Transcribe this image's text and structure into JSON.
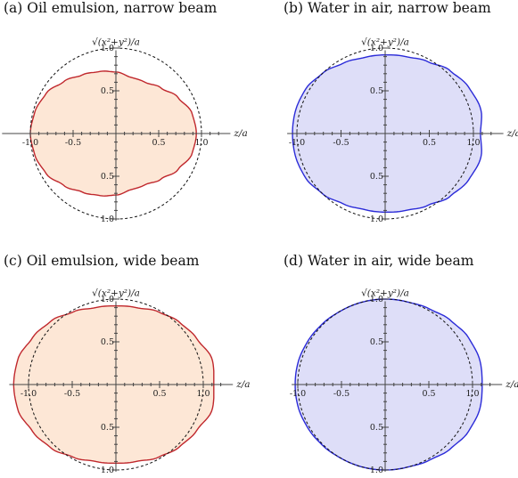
{
  "chart_data": [
    {
      "type": "shape",
      "title": "(a) Oil emulsion, narrow beam",
      "xlabel": "z/a",
      "ylabel": "√(x²+y²)/a",
      "x_ticks": [
        "-1.0",
        "-0.5",
        "0.5",
        "1.0"
      ],
      "y_ticks": [
        "1.0",
        "0.5",
        "0.5",
        "1.0"
      ],
      "reference_circle": "unit circle (dashed)",
      "fill_color": "#fde7d6",
      "stroke_color": "#c0282d",
      "shape_profile": [
        [
          0,
          0.94
        ],
        [
          15,
          0.92
        ],
        [
          30,
          0.84
        ],
        [
          45,
          0.75
        ],
        [
          60,
          0.69
        ],
        [
          75,
          0.68
        ],
        [
          90,
          0.72
        ],
        [
          105,
          0.75
        ],
        [
          120,
          0.79
        ],
        [
          135,
          0.86
        ],
        [
          150,
          0.94
        ],
        [
          165,
          0.98
        ],
        [
          180,
          1.0
        ]
      ]
    },
    {
      "type": "shape",
      "title": "(b) Water in air, narrow beam",
      "xlabel": "z/a",
      "ylabel": "√(x²+y²)/a",
      "x_ticks": [
        "-1.0",
        "-0.5",
        "0.5",
        "1.0"
      ],
      "y_ticks": [
        "1.0",
        "0.5",
        "0.5",
        "1.0"
      ],
      "reference_circle": "unit circle (dashed)",
      "fill_color": "#dedef8",
      "stroke_color": "#2b2bd8",
      "shape_profile": [
        [
          0,
          1.08
        ],
        [
          15,
          1.12
        ],
        [
          30,
          1.09
        ],
        [
          45,
          1.04
        ],
        [
          60,
          0.97
        ],
        [
          75,
          0.93
        ],
        [
          90,
          0.92
        ],
        [
          105,
          0.92
        ],
        [
          120,
          0.95
        ],
        [
          135,
          1.0
        ],
        [
          150,
          1.04
        ],
        [
          165,
          1.05
        ],
        [
          180,
          1.05
        ]
      ]
    },
    {
      "type": "shape",
      "title": "(c) Oil emulsion, wide beam",
      "xlabel": "z/a",
      "ylabel": "√(x²+y²)/a",
      "x_ticks": [
        "-1.0",
        "-0.5",
        "0.5",
        "1.0"
      ],
      "y_ticks": [
        "1.0",
        "0.5",
        "0.5",
        "1.0"
      ],
      "reference_circle": "unit circle (dashed)",
      "fill_color": "#fde7d6",
      "stroke_color": "#c0282d",
      "shape_profile": [
        [
          0,
          1.12
        ],
        [
          15,
          1.14
        ],
        [
          30,
          1.07
        ],
        [
          45,
          1.03
        ],
        [
          60,
          0.98
        ],
        [
          75,
          0.93
        ],
        [
          90,
          0.92
        ],
        [
          105,
          0.93
        ],
        [
          120,
          0.98
        ],
        [
          135,
          1.05
        ],
        [
          150,
          1.1
        ],
        [
          165,
          1.16
        ],
        [
          180,
          1.17
        ]
      ]
    },
    {
      "type": "shape",
      "title": "(d) Water in air, wide beam",
      "xlabel": "z/a",
      "ylabel": "√(x²+y²)/a",
      "x_ticks": [
        "-1.0",
        "-0.5",
        "0.5",
        "1.0"
      ],
      "y_ticks": [
        "1.0",
        "0.5",
        "0.5",
        "1.0"
      ],
      "reference_circle": "unit circle (dashed)",
      "fill_color": "#dedef8",
      "stroke_color": "#2b2bd8",
      "shape_profile": [
        [
          0,
          1.11
        ],
        [
          15,
          1.12
        ],
        [
          30,
          1.1
        ],
        [
          45,
          1.06
        ],
        [
          60,
          1.02
        ],
        [
          75,
          1.0
        ],
        [
          90,
          1.0
        ],
        [
          105,
          1.0
        ],
        [
          120,
          1.0
        ],
        [
          135,
          1.01
        ],
        [
          150,
          1.02
        ],
        [
          165,
          1.03
        ],
        [
          180,
          1.03
        ]
      ]
    }
  ]
}
